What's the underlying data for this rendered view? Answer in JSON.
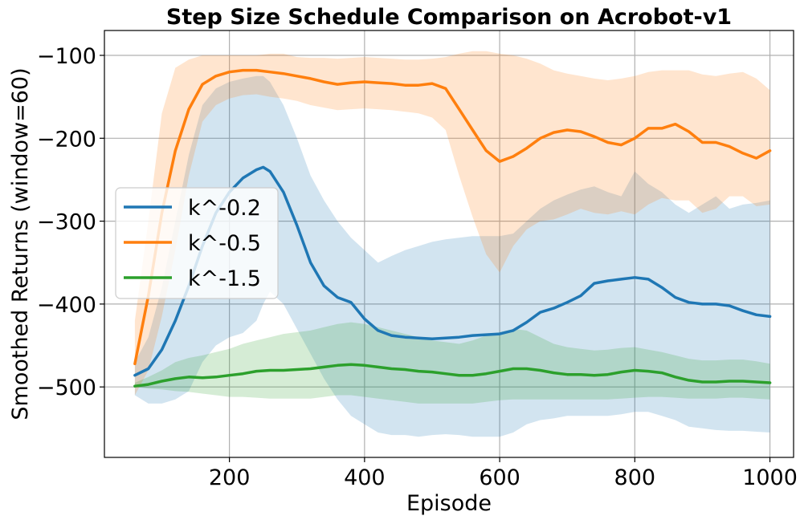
{
  "chart_data": {
    "type": "line",
    "title": "Step Size Schedule Comparison on Acrobot-v1",
    "xlabel": "Episode",
    "ylabel": "Smoothed Returns (window=60)",
    "xlim": [
      15,
      1035
    ],
    "ylim": [
      -585,
      -70
    ],
    "xticks": [
      200,
      400,
      600,
      800,
      1000
    ],
    "xtick_labels": [
      "200",
      "400",
      "600",
      "800",
      "1000"
    ],
    "yticks": [
      -100,
      -200,
      -300,
      -400,
      -500
    ],
    "ytick_labels": [
      "−100",
      "−200",
      "−300",
      "−400",
      "−500"
    ],
    "grid": true,
    "legend_position": "center-left",
    "series": [
      {
        "name": "k^-0.2",
        "color": "#1f77b4",
        "x": [
          60,
          80,
          100,
          120,
          140,
          160,
          180,
          200,
          220,
          240,
          250,
          260,
          280,
          300,
          320,
          340,
          360,
          380,
          400,
          420,
          440,
          460,
          480,
          500,
          520,
          540,
          560,
          580,
          600,
          620,
          640,
          660,
          680,
          700,
          720,
          740,
          760,
          780,
          800,
          820,
          840,
          860,
          880,
          900,
          920,
          940,
          960,
          980,
          1000
        ],
        "mean": [
          -486,
          -478,
          -455,
          -420,
          -378,
          -330,
          -290,
          -265,
          -248,
          -238,
          -235,
          -240,
          -265,
          -305,
          -350,
          -378,
          -392,
          -398,
          -418,
          -432,
          -438,
          -440,
          -441,
          -442,
          -441,
          -440,
          -438,
          -437,
          -436,
          -432,
          -422,
          -410,
          -405,
          -398,
          -390,
          -375,
          -372,
          -370,
          -368,
          -370,
          -380,
          -392,
          -398,
          -400,
          -400,
          -402,
          -408,
          -413,
          -415
        ],
        "upper": [
          -470,
          -440,
          -380,
          -300,
          -220,
          -160,
          -140,
          -132,
          -128,
          -125,
          -125,
          -132,
          -160,
          -200,
          -245,
          -275,
          -300,
          -320,
          -335,
          -350,
          -342,
          -335,
          -330,
          -325,
          -322,
          -320,
          -318,
          -318,
          -318,
          -315,
          -300,
          -285,
          -275,
          -268,
          -262,
          -258,
          -265,
          -270,
          -240,
          -255,
          -265,
          -280,
          -290,
          -280,
          -270,
          -285,
          -280,
          -278,
          -275
        ],
        "lower": [
          -510,
          -520,
          -520,
          -515,
          -505,
          -470,
          -450,
          -440,
          -435,
          -420,
          -400,
          -385,
          -400,
          -430,
          -460,
          -490,
          -515,
          -535,
          -545,
          -555,
          -558,
          -558,
          -560,
          -558,
          -557,
          -558,
          -560,
          -560,
          -560,
          -555,
          -545,
          -540,
          -538,
          -535,
          -535,
          -535,
          -535,
          -533,
          -530,
          -530,
          -535,
          -540,
          -548,
          -550,
          -552,
          -553,
          -553,
          -554,
          -555
        ]
      },
      {
        "name": "k^-0.5",
        "color": "#ff7f0e",
        "x": [
          60,
          80,
          100,
          120,
          140,
          160,
          180,
          200,
          220,
          240,
          260,
          280,
          300,
          320,
          340,
          360,
          380,
          400,
          420,
          440,
          460,
          480,
          500,
          520,
          540,
          560,
          580,
          600,
          620,
          640,
          660,
          680,
          700,
          720,
          740,
          760,
          780,
          800,
          820,
          840,
          860,
          880,
          900,
          920,
          940,
          960,
          980,
          1000
        ],
        "mean": [
          -472,
          -390,
          -290,
          -215,
          -165,
          -135,
          -125,
          -120,
          -118,
          -118,
          -120,
          -122,
          -125,
          -128,
          -132,
          -135,
          -133,
          -132,
          -133,
          -134,
          -136,
          -136,
          -134,
          -140,
          -165,
          -190,
          -215,
          -228,
          -222,
          -212,
          -200,
          -193,
          -190,
          -192,
          -198,
          -205,
          -208,
          -200,
          -188,
          -188,
          -183,
          -192,
          -205,
          -205,
          -210,
          -218,
          -224,
          -215
        ],
        "upper": [
          -420,
          -300,
          -170,
          -115,
          -105,
          -100,
          -100,
          -100,
          -100,
          -100,
          -98,
          -98,
          -102,
          -103,
          -103,
          -104,
          -103,
          -102,
          -103,
          -104,
          -105,
          -105,
          -104,
          -102,
          -98,
          -95,
          -95,
          -98,
          -100,
          -104,
          -110,
          -118,
          -122,
          -125,
          -128,
          -130,
          -128,
          -125,
          -120,
          -118,
          -118,
          -118,
          -123,
          -125,
          -122,
          -120,
          -128,
          -142
        ],
        "lower": [
          -510,
          -480,
          -415,
          -335,
          -245,
          -180,
          -160,
          -152,
          -148,
          -147,
          -150,
          -152,
          -155,
          -160,
          -163,
          -166,
          -165,
          -164,
          -165,
          -166,
          -168,
          -170,
          -175,
          -190,
          -245,
          -295,
          -340,
          -362,
          -330,
          -310,
          -300,
          -298,
          -292,
          -285,
          -290,
          -292,
          -288,
          -292,
          -280,
          -272,
          -275,
          -275,
          -290,
          -285,
          -270,
          -270,
          -282,
          -280
        ]
      },
      {
        "name": "k^-1.5",
        "color": "#2ca02c",
        "x": [
          60,
          80,
          100,
          120,
          140,
          160,
          180,
          200,
          220,
          240,
          260,
          280,
          300,
          320,
          340,
          360,
          380,
          400,
          420,
          440,
          460,
          480,
          500,
          520,
          540,
          560,
          580,
          600,
          620,
          640,
          660,
          680,
          700,
          720,
          740,
          760,
          780,
          800,
          820,
          840,
          860,
          880,
          900,
          920,
          940,
          960,
          980,
          1000
        ],
        "mean": [
          -499,
          -497,
          -493,
          -490,
          -488,
          -489,
          -488,
          -486,
          -484,
          -481,
          -480,
          -480,
          -479,
          -478,
          -476,
          -474,
          -473,
          -474,
          -476,
          -478,
          -479,
          -481,
          -482,
          -484,
          -486,
          -486,
          -484,
          -481,
          -478,
          -478,
          -480,
          -483,
          -485,
          -485,
          -486,
          -485,
          -482,
          -480,
          -481,
          -483,
          -488,
          -492,
          -494,
          -494,
          -493,
          -493,
          -494,
          -495
        ],
        "upper": [
          -495,
          -488,
          -480,
          -470,
          -465,
          -462,
          -458,
          -454,
          -448,
          -444,
          -440,
          -436,
          -434,
          -432,
          -428,
          -424,
          -422,
          -424,
          -428,
          -432,
          -436,
          -440,
          -444,
          -446,
          -448,
          -444,
          -438,
          -434,
          -430,
          -432,
          -440,
          -448,
          -452,
          -454,
          -456,
          -455,
          -453,
          -452,
          -455,
          -458,
          -462,
          -466,
          -468,
          -468,
          -467,
          -467,
          -469,
          -472
        ],
        "lower": [
          -500,
          -502,
          -503,
          -505,
          -506,
          -508,
          -510,
          -512,
          -512,
          -513,
          -514,
          -514,
          -514,
          -514,
          -512,
          -510,
          -510,
          -512,
          -514,
          -516,
          -518,
          -520,
          -520,
          -520,
          -520,
          -520,
          -518,
          -516,
          -515,
          -515,
          -515,
          -515,
          -515,
          -515,
          -515,
          -515,
          -514,
          -513,
          -512,
          -512,
          -513,
          -514,
          -514,
          -514,
          -513,
          -513,
          -514,
          -515
        ]
      }
    ]
  }
}
